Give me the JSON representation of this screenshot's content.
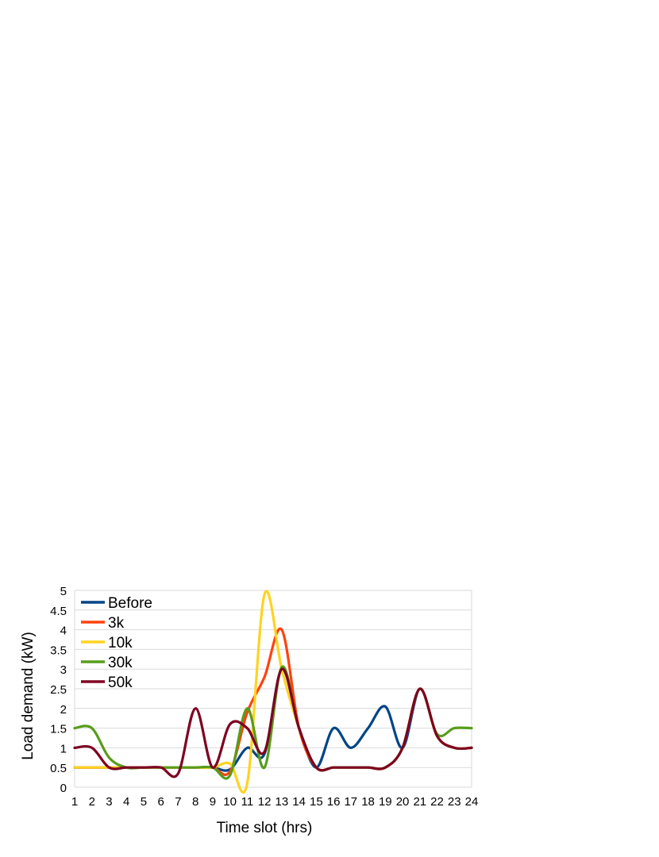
{
  "chart_data": {
    "type": "line",
    "title": "",
    "xlabel": "Time slot (hrs)",
    "ylabel": "Load demand (kW)",
    "x": [
      1,
      2,
      3,
      4,
      5,
      6,
      7,
      8,
      9,
      10,
      11,
      12,
      13,
      14,
      15,
      16,
      17,
      18,
      19,
      20,
      21,
      22,
      23,
      24
    ],
    "xlim": [
      1,
      24
    ],
    "ylim": [
      0,
      5
    ],
    "yticks": [
      "0",
      "0.5",
      "1",
      "1.5",
      "2",
      "2.5",
      "3",
      "3.5",
      "4",
      "4.5",
      "5"
    ],
    "xticks": [
      "1",
      "2",
      "3",
      "4",
      "5",
      "6",
      "7",
      "8",
      "9",
      "10",
      "11",
      "12",
      "13",
      "14",
      "15",
      "16",
      "17",
      "18",
      "19",
      "20",
      "21",
      "22",
      "23",
      "24"
    ],
    "grid": true,
    "legend_position": "top-left",
    "series": [
      {
        "name": "Before",
        "color": "#004586",
        "values": [
          0.5,
          0.5,
          0.5,
          0.5,
          0.5,
          0.5,
          0.5,
          0.5,
          0.5,
          0.45,
          1.0,
          0.85,
          3.0,
          1.5,
          0.5,
          1.5,
          1.0,
          1.5,
          2.05,
          1.0,
          2.5,
          1.3,
          1.0,
          1.0
        ]
      },
      {
        "name": "3k",
        "color": "#ff420e",
        "values": [
          0.5,
          0.5,
          0.5,
          0.5,
          0.5,
          0.5,
          0.5,
          0.5,
          0.5,
          0.4,
          1.9,
          2.8,
          4.0,
          1.5,
          0.5,
          0.5,
          0.5,
          0.5,
          0.5,
          1.0,
          2.5,
          1.3,
          1.0,
          1.0
        ]
      },
      {
        "name": "10k",
        "color": "#ffd320",
        "values": [
          0.5,
          0.5,
          0.5,
          0.5,
          0.5,
          0.5,
          0.5,
          0.5,
          0.5,
          0.6,
          0.1,
          4.9,
          3.0,
          1.5,
          0.5,
          0.5,
          0.5,
          0.5,
          0.5,
          1.0,
          2.5,
          1.3,
          1.0,
          1.0
        ]
      },
      {
        "name": "30k",
        "color": "#579d1c",
        "values": [
          1.5,
          1.5,
          0.75,
          0.5,
          0.5,
          0.5,
          0.5,
          0.5,
          0.5,
          0.3,
          2.0,
          0.5,
          3.05,
          1.5,
          0.5,
          0.5,
          0.5,
          0.5,
          0.5,
          1.0,
          2.5,
          1.35,
          1.5,
          1.5
        ]
      },
      {
        "name": "50k",
        "color": "#7e0021",
        "values": [
          1.0,
          1.0,
          0.5,
          0.5,
          0.5,
          0.5,
          0.35,
          2.0,
          0.5,
          1.6,
          1.5,
          0.9,
          3.0,
          1.5,
          0.5,
          0.5,
          0.5,
          0.5,
          0.5,
          1.0,
          2.5,
          1.3,
          1.0,
          1.0
        ]
      }
    ]
  }
}
